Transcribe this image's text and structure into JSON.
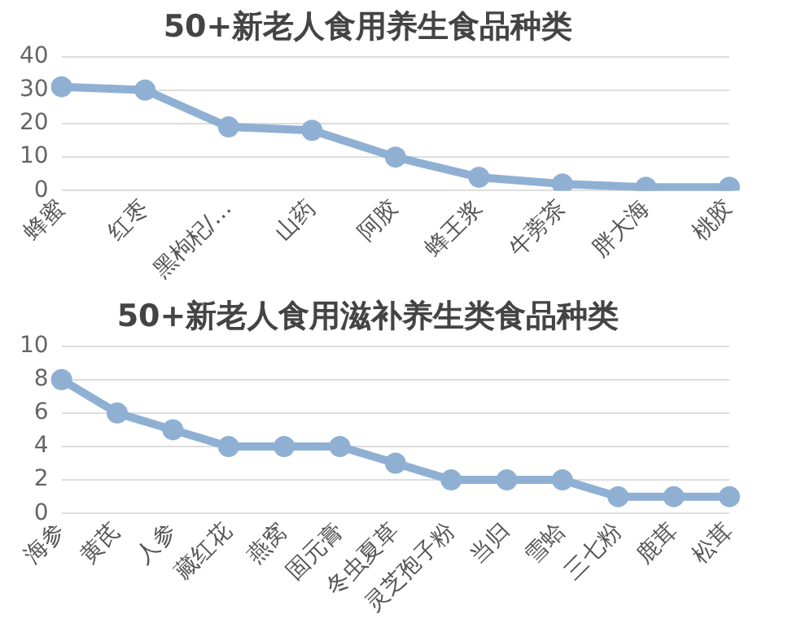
{
  "chart_data": [
    {
      "type": "line",
      "title": "50+新老人食用养生食品种类",
      "categories": [
        "蜂蜜",
        "红枣",
        "黑枸杞/…",
        "山药",
        "阿胶",
        "蜂王浆",
        "牛蒡茶",
        "胖大海",
        "桃胶"
      ],
      "series": [
        {
          "color": "#8fb0d3",
          "values": [
            31,
            30,
            19,
            18,
            10,
            4,
            2,
            1,
            1
          ]
        }
      ],
      "ylim": [
        0,
        40
      ],
      "yticks": [
        0,
        10,
        20,
        30,
        40
      ],
      "grid": "y",
      "legend": false,
      "marker": "circle",
      "line_style": "solid"
    },
    {
      "type": "line",
      "title": "50+新老人食用滋补养生类食品种类",
      "categories": [
        "海参",
        "黄芪",
        "人参",
        "藏红花",
        "燕窝",
        "固元膏",
        "冬虫夏草",
        "灵芝孢子粉",
        "当归",
        "雪蛤",
        "三七粉",
        "鹿茸",
        "松茸"
      ],
      "series": [
        {
          "color": "#8fb0d3",
          "values": [
            8,
            6,
            5,
            4,
            4,
            4,
            3,
            2,
            2,
            2,
            1,
            1,
            1
          ]
        }
      ],
      "ylim": [
        0,
        10
      ],
      "yticks": [
        0,
        2,
        4,
        6,
        8,
        10
      ],
      "grid": "y",
      "legend": false,
      "marker": "circle",
      "line_style": "solid"
    }
  ]
}
